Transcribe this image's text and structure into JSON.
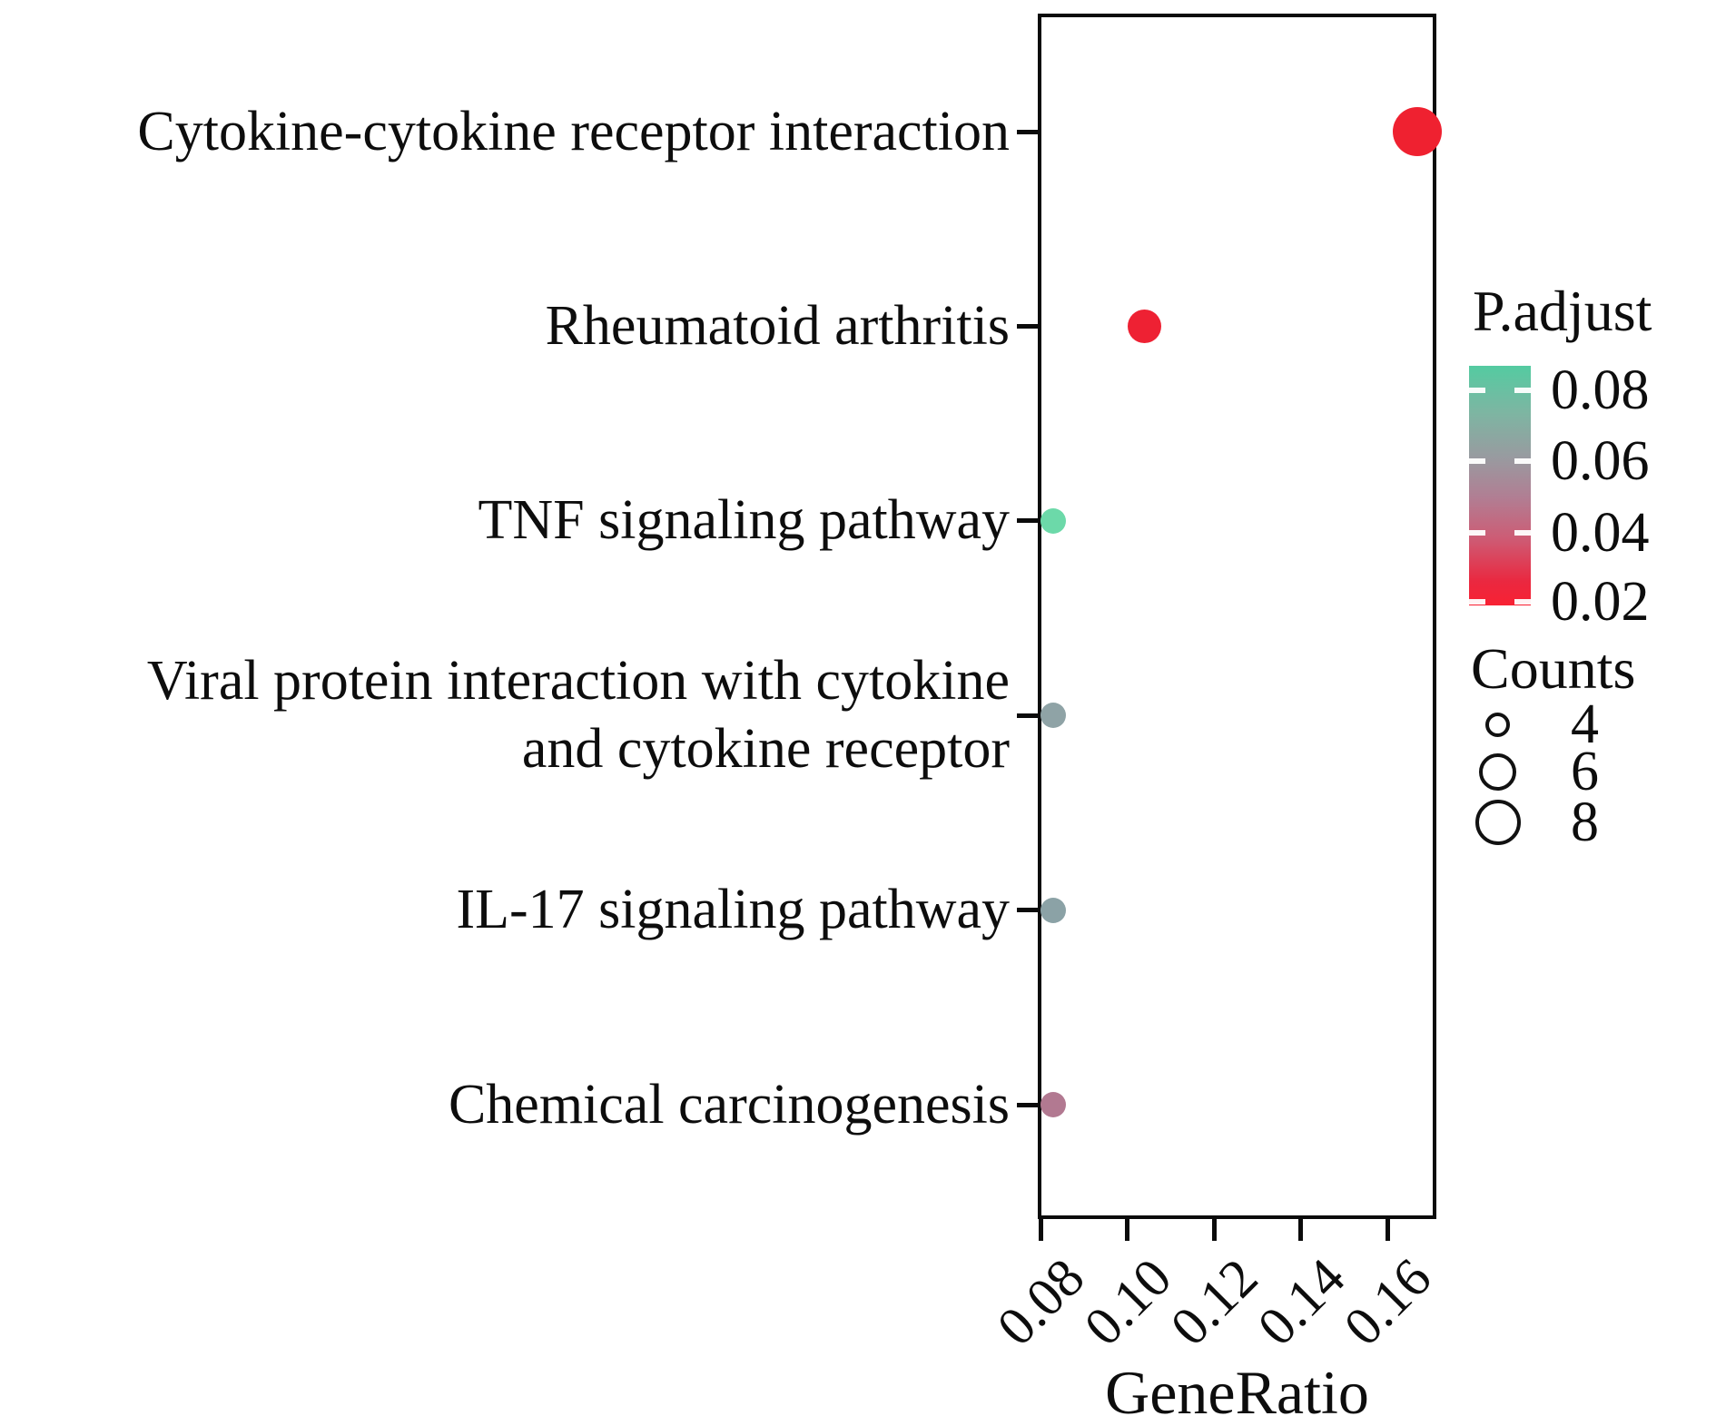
{
  "chart_data": {
    "type": "scatter",
    "title": "",
    "xlabel": "GeneRatio",
    "ylabel": "",
    "x_ticks": [
      0.08,
      0.1,
      0.12,
      0.14,
      0.16
    ],
    "x_tick_labels": [
      "0.08",
      "0.10",
      "0.12",
      "0.14",
      "0.16"
    ],
    "x_range": [
      0.0795,
      0.171
    ],
    "grid": false,
    "legend_position": "right",
    "points": [
      {
        "label": "Cytokine-cytokine receptor interaction",
        "label_lines": [
          "Cytokine-cytokine receptor interaction"
        ],
        "gene_ratio": 0.167,
        "count": 8,
        "p_adjust": 0.02,
        "color": "#ef2130"
      },
      {
        "label": "Rheumatoid arthritis",
        "label_lines": [
          "Rheumatoid arthritis"
        ],
        "gene_ratio": 0.104,
        "count": 5,
        "p_adjust": 0.02,
        "color": "#ee2133"
      },
      {
        "label": "TNF signaling pathway",
        "label_lines": [
          "TNF signaling pathway"
        ],
        "gene_ratio": 0.083,
        "count": 4,
        "p_adjust": 0.085,
        "color": "#6cd9a9"
      },
      {
        "label": "Viral protein interaction with cytokine and cytokine receptor",
        "label_lines": [
          "Viral protein interaction with cytokine",
          "and cytokine receptor"
        ],
        "gene_ratio": 0.083,
        "count": 4,
        "p_adjust": 0.065,
        "color": "#8fa3a6"
      },
      {
        "label": "IL-17 signaling pathway",
        "label_lines": [
          "IL-17 signaling pathway"
        ],
        "gene_ratio": 0.083,
        "count": 4,
        "p_adjust": 0.065,
        "color": "#8ba2a6"
      },
      {
        "label": "Chemical carcinogenesis",
        "label_lines": [
          "Chemical carcinogenesis"
        ],
        "gene_ratio": 0.083,
        "count": 4,
        "p_adjust": 0.05,
        "color": "#b27991"
      }
    ]
  },
  "legend": {
    "padjust": {
      "title": "P.adjust",
      "tick_labels": [
        "0.08",
        "0.06",
        "0.04",
        "0.02"
      ],
      "gradient_stops": [
        "#54cba1 0%",
        "#7eb5a2 20%",
        "#989ba0 38%",
        "#b17e93 55%",
        "#cd5c75 72%",
        "#ea2840 90%",
        "#f82133 100%"
      ]
    },
    "counts": {
      "title": "Counts",
      "items": [
        {
          "label": "4",
          "count": 4
        },
        {
          "label": "6",
          "count": 6
        },
        {
          "label": "8",
          "count": 8
        }
      ]
    }
  }
}
